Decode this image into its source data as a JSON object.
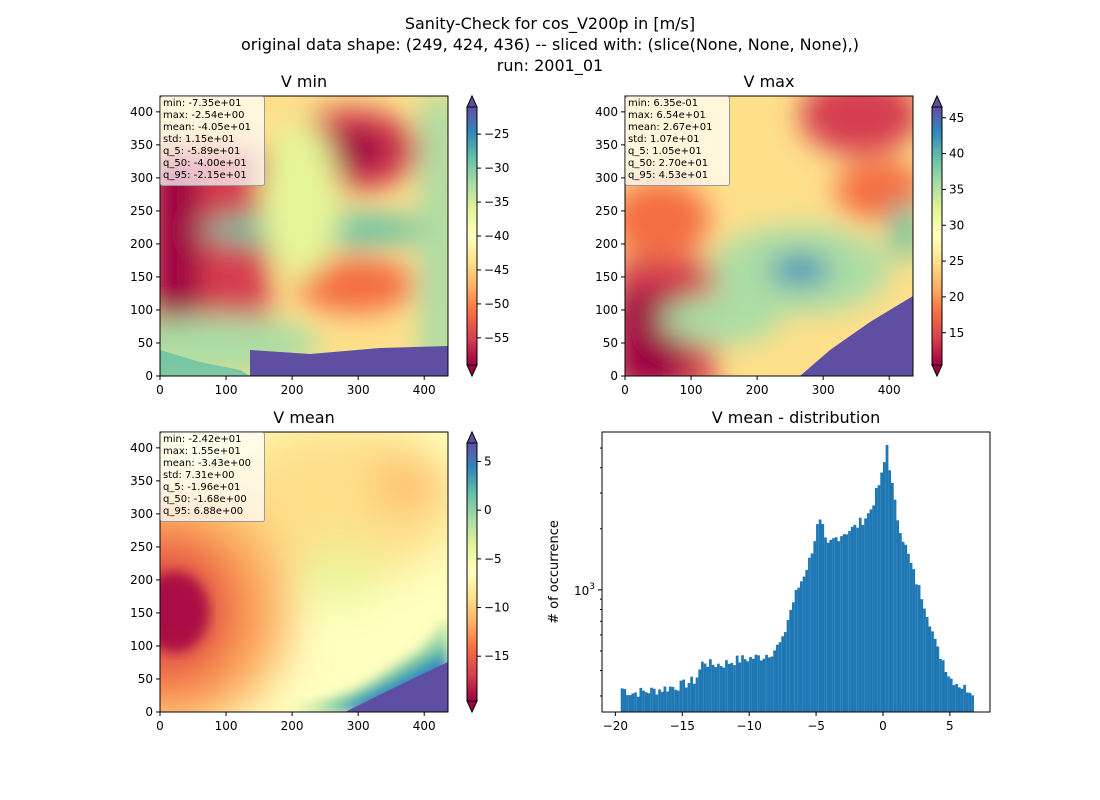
{
  "figure": {
    "suptitle_lines": [
      "Sanity-Check for cos_V200p in [m/s]",
      "original data shape: (249, 424, 436) -- sliced with: (slice(None, None, None),)",
      "run: 2001_01"
    ]
  },
  "chart_data": [
    {
      "type": "heatmap",
      "title": "V min",
      "colormap": "Spectral",
      "xlim": [
        0,
        436
      ],
      "ylim": [
        0,
        424
      ],
      "xticks": [
        0,
        100,
        200,
        300,
        400
      ],
      "yticks": [
        0,
        50,
        100,
        150,
        200,
        250,
        300,
        350,
        400
      ],
      "colorbar": {
        "min": -59,
        "max": -21,
        "ticks": [
          -25,
          -30,
          -35,
          -40,
          -45,
          -50,
          -55
        ]
      },
      "stats_box": [
        "min: -7.35e+01",
        "max: -2.54e+00",
        "mean: -4.05e+01",
        "std: 1.15e+01",
        "q_5: -5.89e+01",
        "q_50: -4.00e+01",
        "q_95: -2.15e+01"
      ]
    },
    {
      "type": "heatmap",
      "title": "V max",
      "colormap": "Spectral",
      "xlim": [
        0,
        436
      ],
      "ylim": [
        0,
        424
      ],
      "xticks": [
        0,
        100,
        200,
        300,
        400
      ],
      "yticks": [
        0,
        50,
        100,
        150,
        200,
        250,
        300,
        350,
        400
      ],
      "colorbar": {
        "min": 10.5,
        "max": 46.5,
        "ticks": [
          15,
          20,
          25,
          30,
          35,
          40,
          45
        ]
      },
      "stats_box": [
        "min: 6.35e-01",
        "max: 6.54e+01",
        "mean: 2.67e+01",
        "std: 1.07e+01",
        "q_5: 1.05e+01",
        "q_50: 2.70e+01",
        "q_95: 4.53e+01"
      ]
    },
    {
      "type": "heatmap",
      "title": "V mean",
      "colormap": "Spectral",
      "xlim": [
        0,
        436
      ],
      "ylim": [
        0,
        424
      ],
      "xticks": [
        0,
        100,
        200,
        300,
        400
      ],
      "yticks": [
        0,
        50,
        100,
        150,
        200,
        250,
        300,
        350,
        400
      ],
      "colorbar": {
        "min": -19.6,
        "max": 6.9,
        "ticks": [
          5,
          0,
          -5,
          -10,
          -15
        ]
      },
      "stats_box": [
        "min: -2.42e+01",
        "max: 1.55e+01",
        "mean: -3.43e+00",
        "std: 7.31e+00",
        "q_5: -1.96e+01",
        "q_50: -1.68e+00",
        "q_95: 6.88e+00"
      ]
    },
    {
      "type": "bar",
      "title": "V mean - distribution",
      "xlabel": "",
      "ylabel": "# of occurrence",
      "yscale": "log",
      "xlim": [
        -21,
        8
      ],
      "ylim": [
        250,
        6000
      ],
      "xticks": [
        -20,
        -15,
        -10,
        -5,
        0,
        5
      ],
      "ytick_label": "10^3",
      "bar_color": "#1f77b4",
      "bin_width": 0.2,
      "curve_x": [
        -19.6,
        -18.8,
        -18.0,
        -17.0,
        -16.0,
        -15.0,
        -14.0,
        -13.4,
        -13.0,
        -12.0,
        -11.0,
        -10.0,
        -9.0,
        -8.2,
        -7.5,
        -7.0,
        -6.5,
        -6.0,
        -5.5,
        -5.0,
        -4.8,
        -4.5,
        -4.2,
        -3.8,
        -3.0,
        -2.0,
        -1.0,
        -0.5,
        0.0,
        0.3,
        0.6,
        1.0,
        1.5,
        2.0,
        2.5,
        3.0,
        3.5,
        4.0,
        4.5,
        5.0,
        5.5,
        6.0,
        6.8
      ],
      "curve_y": [
        330,
        310,
        315,
        320,
        330,
        340,
        360,
        450,
        430,
        430,
        450,
        460,
        470,
        500,
        560,
        760,
        960,
        1150,
        1400,
        1900,
        2200,
        2000,
        1600,
        1750,
        1900,
        2050,
        2400,
        3000,
        3800,
        5200,
        3600,
        2400,
        1800,
        1400,
        1100,
        900,
        700,
        520,
        450,
        370,
        350,
        330,
        320
      ]
    }
  ]
}
